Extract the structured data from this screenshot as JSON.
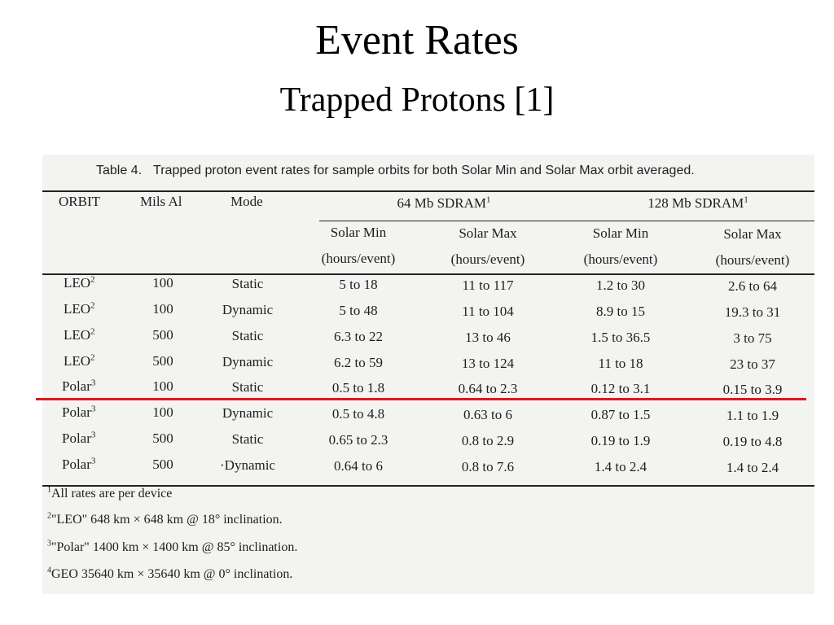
{
  "slide": {
    "title": "Event Rates",
    "subtitle": "Trapped Protons [1]"
  },
  "table": {
    "caption_label": "Table 4.",
    "caption_text": "Trapped proton event rates for sample orbits for both Solar Min and Solar Max orbit averaged.",
    "headers": {
      "orbit": "ORBIT",
      "mils": "Mils Al",
      "mode": "Mode",
      "group1": "64 Mb SDRAM",
      "group1_sup": "1",
      "group2": "128 Mb SDRAM",
      "group2_sup": "1",
      "solar_min": "Solar Min",
      "solar_max": "Solar Max",
      "unit": "(hours/event)"
    },
    "rows": [
      {
        "orbit": "LEO",
        "sup": "2",
        "mils": "100",
        "mode": "Static",
        "v1": "5 to 18",
        "v2": "11 to 117",
        "v3": "1.2 to 30",
        "v4": "2.6 to 64"
      },
      {
        "orbit": "LEO",
        "sup": "2",
        "mils": "100",
        "mode": "Dynamic",
        "v1": "5 to 48",
        "v2": "11 to 104",
        "v3": "8.9 to 15",
        "v4": "19.3 to 31"
      },
      {
        "orbit": "LEO",
        "sup": "2",
        "mils": "500",
        "mode": "Static",
        "v1": "6.3 to 22",
        "v2": "13 to 46",
        "v3": "1.5 to 36.5",
        "v4": "3 to 75"
      },
      {
        "orbit": "LEO",
        "sup": "2",
        "mils": "500",
        "mode": "Dynamic",
        "v1": "6.2 to 59",
        "v2": "13 to 124",
        "v3": "11 to 18",
        "v4": "23 to 37"
      },
      {
        "orbit": "Polar",
        "sup": "3",
        "mils": "100",
        "mode": "Static",
        "v1": "0.5 to 1.8",
        "v2": "0.64 to 2.3",
        "v3": "0.12 to 3.1",
        "v4": "0.15 to 3.9"
      },
      {
        "orbit": "Polar",
        "sup": "3",
        "mils": "100",
        "mode": "Dynamic",
        "v1": "0.5 to 4.8",
        "v2": "0.63 to 6",
        "v3": "0.87 to 1.5",
        "v4": "1.1 to 1.9"
      },
      {
        "orbit": "Polar",
        "sup": "3",
        "mils": "500",
        "mode": "Static",
        "v1": "0.65 to 2.3",
        "v2": "0.8 to 2.9",
        "v3": "0.19 to 1.9",
        "v4": "0.19 to 4.8"
      },
      {
        "orbit": "Polar",
        "sup": "3",
        "mils": "500",
        "mode": "·Dynamic",
        "v1": "0.64 to 6",
        "v2": "0.8 to 7.6",
        "v3": "1.4 to 2.4",
        "v4": "1.4 to 2.4"
      }
    ]
  },
  "footnotes": [
    {
      "sup": "1",
      "text": "All rates are per device"
    },
    {
      "sup": "2",
      "text": "\"LEO\" 648 km × 648 km @ 18° inclination."
    },
    {
      "sup": "3",
      "text": "\"Polar\" 1400 km × 1400 km @ 85° inclination."
    },
    {
      "sup": "4",
      "text": "GEO 35640 km × 35640 km @ 0° inclination."
    }
  ],
  "colors": {
    "highlight_line": "#e0161b"
  }
}
